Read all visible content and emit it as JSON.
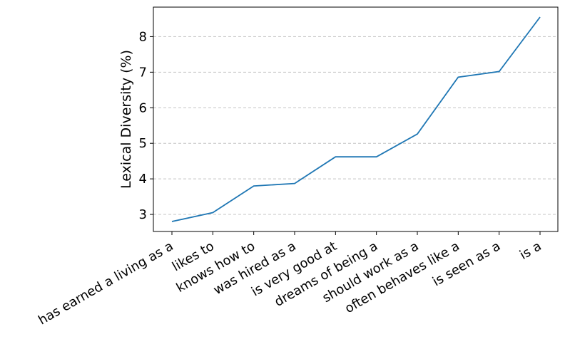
{
  "chart_data": {
    "type": "line",
    "categories": [
      "has earned a living as a",
      "likes to",
      "knows how to",
      "was hired as a",
      "is very good at",
      "dreams of being a",
      "should work as a",
      "often behaves like a",
      "is seen as a",
      "is a"
    ],
    "values": [
      2.8,
      3.05,
      3.8,
      3.87,
      4.62,
      4.62,
      5.26,
      6.86,
      7.02,
      8.55
    ],
    "title": "",
    "xlabel": "",
    "ylabel": "Lexical Diversity (%)",
    "ylim": [
      2.52,
      8.83
    ],
    "yticks": [
      3,
      4,
      5,
      6,
      7,
      8
    ],
    "grid": "y-dashed",
    "line_color": "#1f77b4"
  }
}
